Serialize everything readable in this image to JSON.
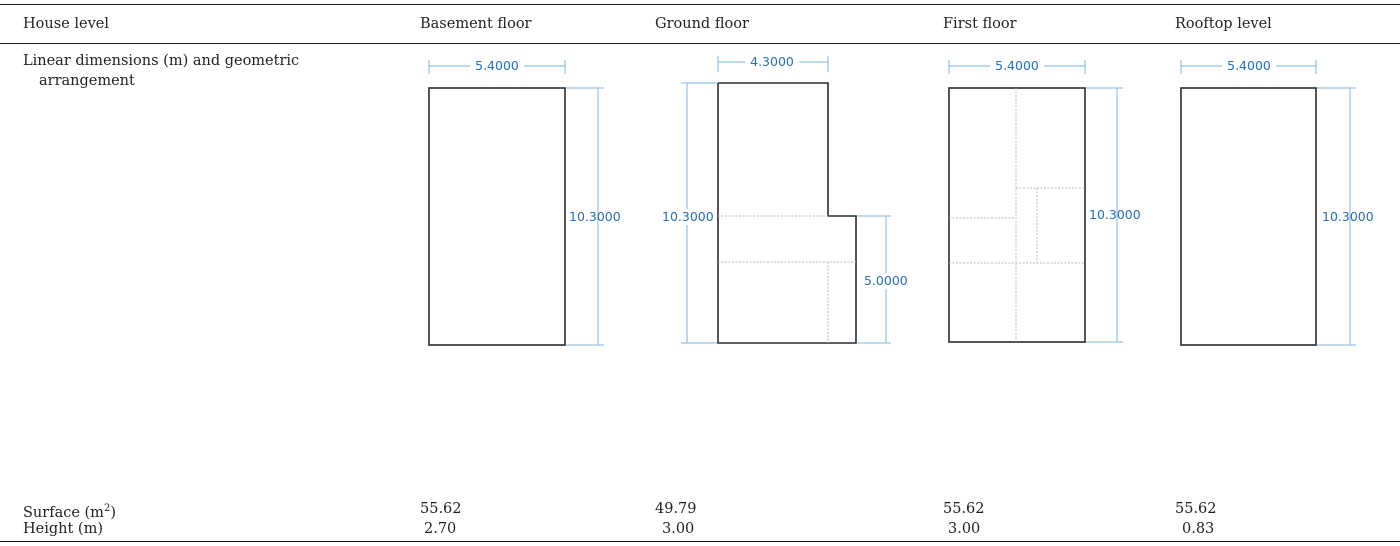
{
  "table": {
    "headers": {
      "row_label": "House level",
      "basement": "Basement floor",
      "ground": "Ground floor",
      "first": "First floor",
      "rooftop": "Rooftop level"
    },
    "rows": {
      "dimensions_label_line1": "Linear dimensions (m) and geometric",
      "dimensions_label_line2": "arrangement",
      "surface_label": "Surface (m",
      "surface_label_sup": "2",
      "surface_label_end": ")",
      "height_label": "Height (m)"
    },
    "surface": {
      "basement": "55.62",
      "ground": "49.79",
      "first": "55.62",
      "rooftop": "55.62"
    },
    "height": {
      "basement": "2.70",
      "ground": "3.00",
      "first": "3.00",
      "rooftop": "0.83"
    }
  },
  "plans": {
    "basement": {
      "width_label": "5.4000",
      "height_label": "10.3000"
    },
    "ground": {
      "width_label": "4.3000",
      "height_label": "10.3000",
      "step_label": "5.0000"
    },
    "first": {
      "width_label": "5.4000",
      "height_label": "10.3000"
    },
    "rooftop": {
      "width_label": "5.4000",
      "height_label": "10.3000"
    }
  },
  "colors": {
    "dimension_line": "#7fb3e0",
    "dimension_text": "#2a6fb0",
    "wall": "#2b2b2b",
    "partition": "#b8b8b8"
  }
}
